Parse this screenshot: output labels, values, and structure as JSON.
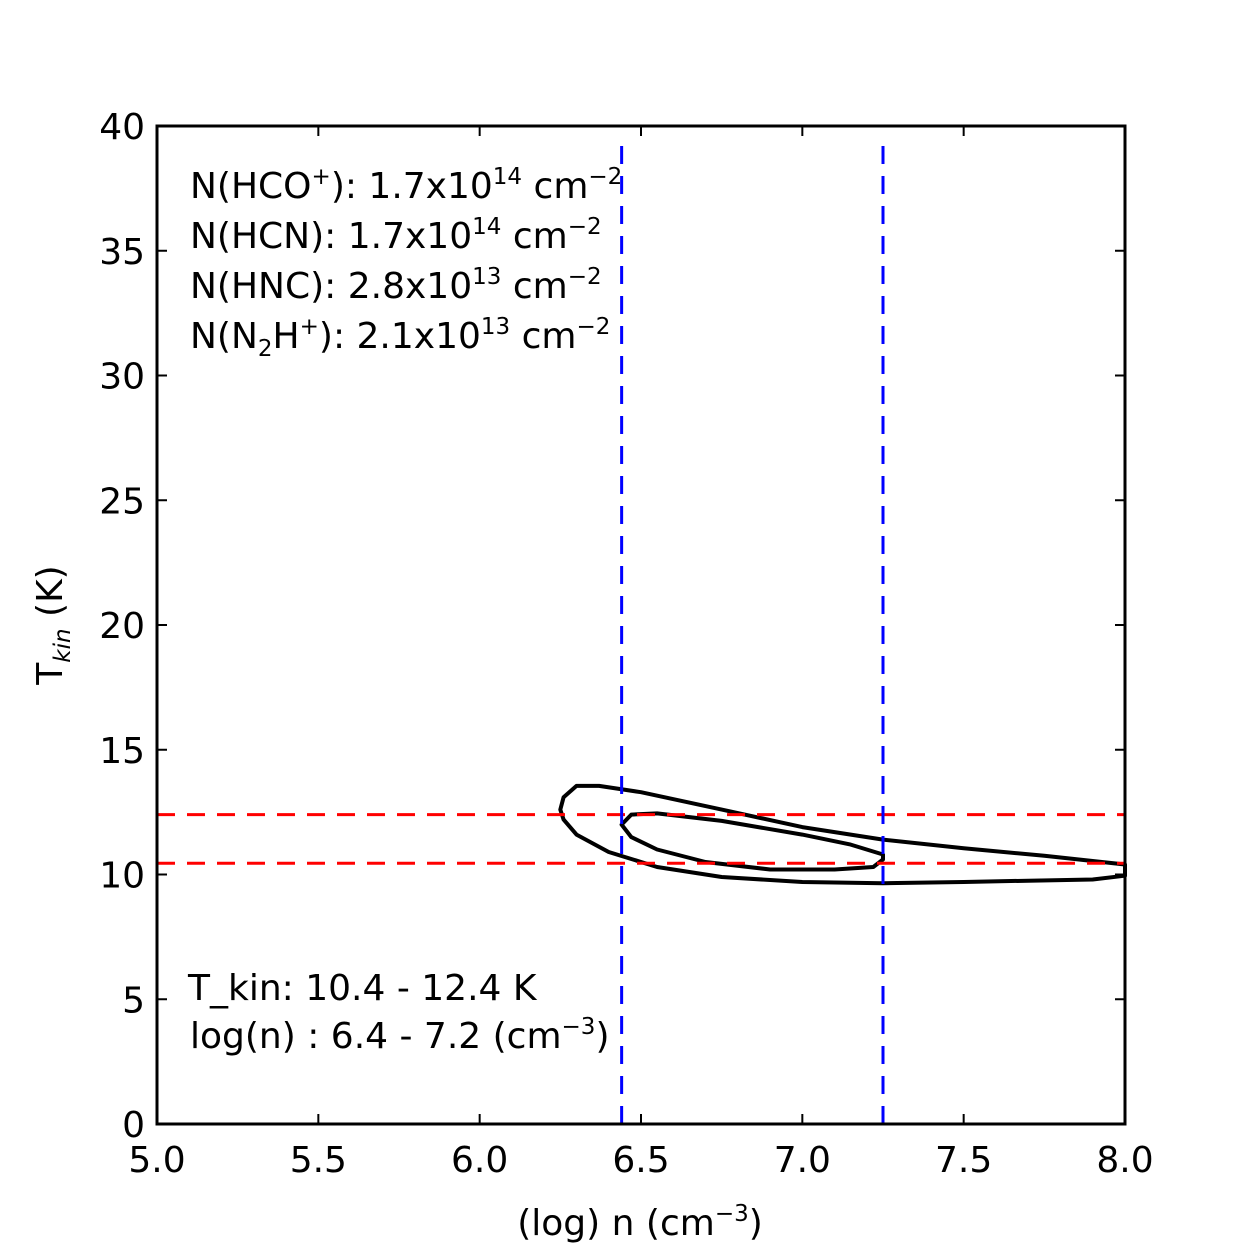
{
  "chart_data": {
    "type": "contour",
    "xlabel": {
      "main": "(log) n (cm",
      "sup": "−3",
      "tail": ")"
    },
    "ylabel": {
      "main": "T",
      "sub": "kin",
      "tail": " (K)"
    },
    "xlim": [
      5.0,
      8.0
    ],
    "ylim": [
      0,
      40
    ],
    "xticks": [
      5.0,
      5.5,
      6.0,
      6.5,
      7.0,
      7.5,
      8.0
    ],
    "xtick_labels": [
      "5.0",
      "5.5",
      "6.0",
      "6.5",
      "7.0",
      "7.5",
      "8.0"
    ],
    "yticks": [
      0,
      5,
      10,
      15,
      20,
      25,
      30,
      35,
      40
    ],
    "ytick_labels": [
      "0",
      "5",
      "10",
      "15",
      "20",
      "25",
      "30",
      "35",
      "40"
    ],
    "columns": [
      {
        "pre": "N(HCO",
        "sup1": "+",
        "mid": "): 1.7x10",
        "sup2": "14",
        "unit": " cm",
        "sup3": "−2"
      },
      {
        "pre": "N(HCN): 1.7x10",
        "sup2": "14",
        "unit": " cm",
        "sup3": "−2"
      },
      {
        "pre": "N(HNC): 2.8x10",
        "sup2": "13",
        "unit": " cm",
        "sup3": "−2"
      },
      {
        "pre": "N(N",
        "sub1": "2",
        "mid1": "H",
        "sup1": "+",
        "mid": "): 2.1x10",
        "sup2": "13",
        "unit": " cm",
        "sup3": "−2"
      }
    ],
    "results": {
      "tkin": "T_kin: 10.4 - 12.4 K",
      "logn_main": "log(n) : 6.4 - 7.2 (cm",
      "logn_sup": "−3",
      "logn_tail": ")"
    },
    "vlines": {
      "x": [
        6.44,
        7.25
      ],
      "color": "#0000ff",
      "style": "dashed"
    },
    "hlines": {
      "y": [
        10.45,
        12.4
      ],
      "color": "#ff0000",
      "style": "dashed"
    },
    "contours": [
      {
        "name": "outer",
        "color": "#000000",
        "points": [
          [
            6.26,
            13.1
          ],
          [
            6.3,
            13.55
          ],
          [
            6.37,
            13.55
          ],
          [
            6.5,
            13.3
          ],
          [
            6.75,
            12.6
          ],
          [
            7.0,
            11.9
          ],
          [
            7.25,
            11.4
          ],
          [
            7.5,
            11.05
          ],
          [
            7.75,
            10.75
          ],
          [
            8.0,
            10.4
          ],
          [
            8.0,
            9.95
          ],
          [
            7.9,
            9.8
          ],
          [
            7.7,
            9.75
          ],
          [
            7.5,
            9.7
          ],
          [
            7.25,
            9.65
          ],
          [
            7.0,
            9.7
          ],
          [
            6.75,
            9.9
          ],
          [
            6.55,
            10.3
          ],
          [
            6.4,
            10.9
          ],
          [
            6.3,
            11.6
          ],
          [
            6.26,
            12.2
          ],
          [
            6.25,
            12.6
          ],
          [
            6.26,
            13.1
          ]
        ]
      },
      {
        "name": "inner",
        "color": "#000000",
        "points": [
          [
            6.44,
            12.0
          ],
          [
            6.47,
            12.4
          ],
          [
            6.55,
            12.45
          ],
          [
            6.75,
            12.15
          ],
          [
            7.0,
            11.6
          ],
          [
            7.15,
            11.2
          ],
          [
            7.25,
            10.8
          ],
          [
            7.25,
            10.6
          ],
          [
            7.22,
            10.3
          ],
          [
            7.1,
            10.2
          ],
          [
            6.9,
            10.2
          ],
          [
            6.7,
            10.5
          ],
          [
            6.55,
            11.0
          ],
          [
            6.47,
            11.5
          ],
          [
            6.44,
            12.0
          ]
        ]
      }
    ]
  }
}
